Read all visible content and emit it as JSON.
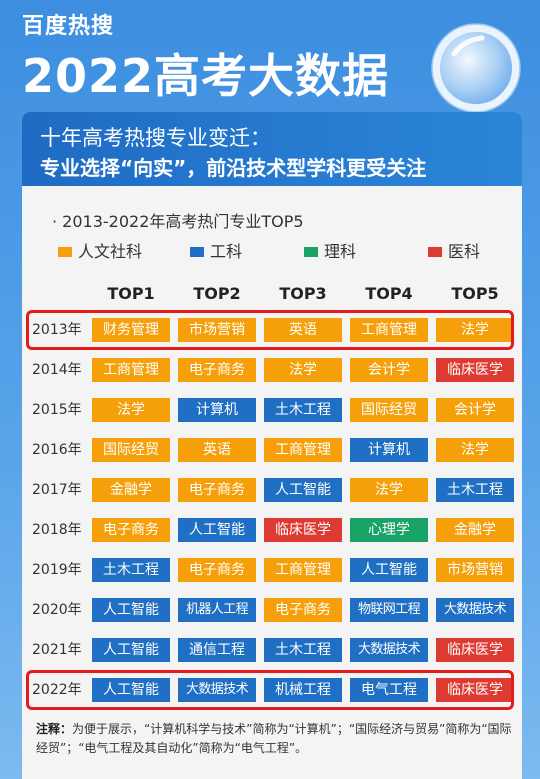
{
  "header": {
    "brand": "百度热搜",
    "title": "2022高考大数据"
  },
  "banner": {
    "line1": "十年高考热搜专业变迁：",
    "line2": "专业选择“向实”，前沿技术型学科更受关注"
  },
  "colors": {
    "人文社科": "#f5a00b",
    "工科": "#1f6fc4",
    "理科": "#1aa366",
    "医科": "#dd3b32"
  },
  "chart_data": {
    "type": "table",
    "title": "2013-2022年高考热门专业TOP5",
    "legend": [
      {
        "label": "人文社科",
        "color": "#f5a00b"
      },
      {
        "label": "工科",
        "color": "#1f6fc4"
      },
      {
        "label": "理科",
        "color": "#1aa366"
      },
      {
        "label": "医科",
        "color": "#dd3b32"
      }
    ],
    "columns": [
      "TOP1",
      "TOP2",
      "TOP3",
      "TOP4",
      "TOP5"
    ],
    "rows": [
      {
        "year": "2013年",
        "items": [
          {
            "name": "财务管理",
            "category": "人文社科"
          },
          {
            "name": "市场营销",
            "category": "人文社科"
          },
          {
            "name": "英语",
            "category": "人文社科"
          },
          {
            "name": "工商管理",
            "category": "人文社科"
          },
          {
            "name": "法学",
            "category": "人文社科"
          }
        ]
      },
      {
        "year": "2014年",
        "items": [
          {
            "name": "工商管理",
            "category": "人文社科"
          },
          {
            "name": "电子商务",
            "category": "人文社科"
          },
          {
            "name": "法学",
            "category": "人文社科"
          },
          {
            "name": "会计学",
            "category": "人文社科"
          },
          {
            "name": "临床医学",
            "category": "医科"
          }
        ]
      },
      {
        "year": "2015年",
        "items": [
          {
            "name": "法学",
            "category": "人文社科"
          },
          {
            "name": "计算机",
            "category": "工科"
          },
          {
            "name": "土木工程",
            "category": "工科"
          },
          {
            "name": "国际经贸",
            "category": "人文社科"
          },
          {
            "name": "会计学",
            "category": "人文社科"
          }
        ]
      },
      {
        "year": "2016年",
        "items": [
          {
            "name": "国际经贸",
            "category": "人文社科"
          },
          {
            "name": "英语",
            "category": "人文社科"
          },
          {
            "name": "工商管理",
            "category": "人文社科"
          },
          {
            "name": "计算机",
            "category": "工科"
          },
          {
            "name": "法学",
            "category": "人文社科"
          }
        ]
      },
      {
        "year": "2017年",
        "items": [
          {
            "name": "金融学",
            "category": "人文社科"
          },
          {
            "name": "电子商务",
            "category": "人文社科"
          },
          {
            "name": "人工智能",
            "category": "工科"
          },
          {
            "name": "法学",
            "category": "人文社科"
          },
          {
            "name": "土木工程",
            "category": "工科"
          }
        ]
      },
      {
        "year": "2018年",
        "items": [
          {
            "name": "电子商务",
            "category": "人文社科"
          },
          {
            "name": "人工智能",
            "category": "工科"
          },
          {
            "name": "临床医学",
            "category": "医科"
          },
          {
            "name": "心理学",
            "category": "理科"
          },
          {
            "name": "金融学",
            "category": "人文社科"
          }
        ]
      },
      {
        "year": "2019年",
        "items": [
          {
            "name": "土木工程",
            "category": "工科"
          },
          {
            "name": "电子商务",
            "category": "人文社科"
          },
          {
            "name": "工商管理",
            "category": "人文社科"
          },
          {
            "name": "人工智能",
            "category": "工科"
          },
          {
            "name": "市场营销",
            "category": "人文社科"
          }
        ]
      },
      {
        "year": "2020年",
        "items": [
          {
            "name": "人工智能",
            "category": "工科"
          },
          {
            "name": "机器人工程",
            "category": "工科"
          },
          {
            "name": "电子商务",
            "category": "人文社科"
          },
          {
            "name": "物联网工程",
            "category": "工科"
          },
          {
            "name": "大数据技术",
            "category": "工科"
          }
        ]
      },
      {
        "year": "2021年",
        "items": [
          {
            "name": "人工智能",
            "category": "工科"
          },
          {
            "name": "通信工程",
            "category": "工科"
          },
          {
            "name": "土木工程",
            "category": "工科"
          },
          {
            "name": "大数据技术",
            "category": "工科"
          },
          {
            "name": "临床医学",
            "category": "医科"
          }
        ]
      },
      {
        "year": "2022年",
        "items": [
          {
            "name": "人工智能",
            "category": "工科"
          },
          {
            "name": "大数据技术",
            "category": "工科"
          },
          {
            "name": "机械工程",
            "category": "工科"
          },
          {
            "name": "电气工程",
            "category": "工科"
          },
          {
            "name": "临床医学",
            "category": "医科"
          }
        ]
      }
    ],
    "highlighted_years": [
      "2013年",
      "2022年"
    ]
  },
  "footnote": {
    "label": "注释：",
    "text": "为便于展示，“计算机科学与技术”简称为“计算机”；“国际经济与贸易”简称为“国际经贸”；“电气工程及其自动化”简称为“电气工程”。"
  }
}
